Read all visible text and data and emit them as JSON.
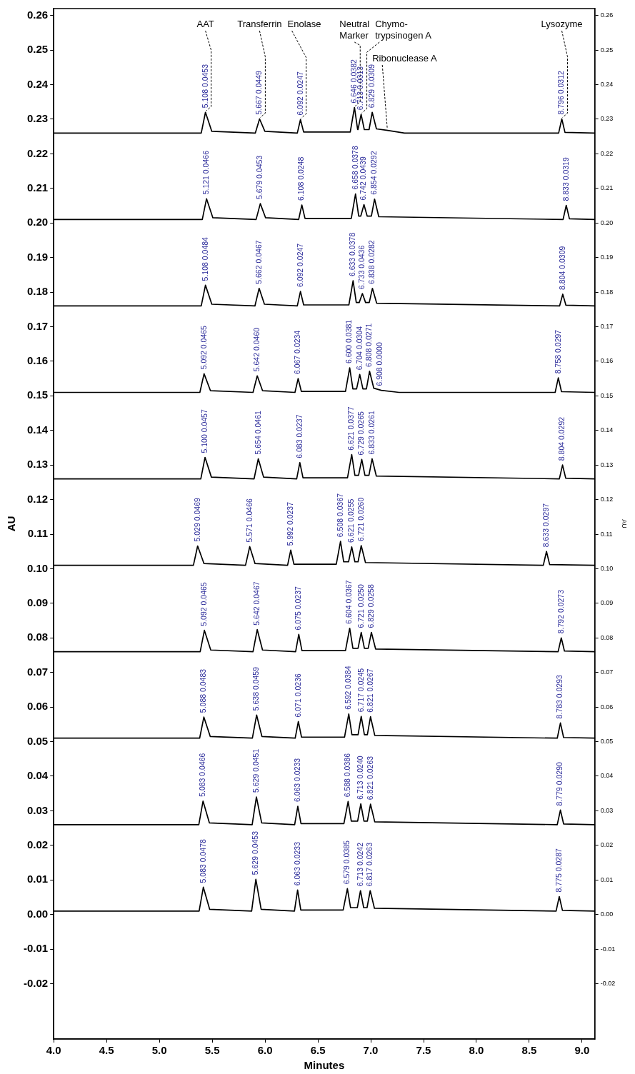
{
  "chart_data": {
    "type": "line",
    "xlabel": "Minutes",
    "ylabel": "AU",
    "y2label": "AU",
    "marker": "none",
    "line_style": "solid",
    "xlim": [
      4.0,
      9.12
    ],
    "xticks": [
      {
        "value": 4.0,
        "label": "4.0"
      },
      {
        "value": 4.5,
        "label": "4.5"
      },
      {
        "value": 5.0,
        "label": "5.0"
      },
      {
        "value": 5.5,
        "label": "5.5"
      },
      {
        "value": 6.0,
        "label": "6.0"
      },
      {
        "value": 6.5,
        "label": "6.5"
      },
      {
        "value": 7.0,
        "label": "7.0"
      },
      {
        "value": 7.5,
        "label": "7.5"
      },
      {
        "value": 8.0,
        "label": "8.0"
      },
      {
        "value": 8.5,
        "label": "8.5"
      },
      {
        "value": 9.0,
        "label": "9.0"
      }
    ],
    "ylim": [
      -0.036,
      0.262
    ],
    "yticks": [
      -0.02,
      -0.01,
      {
        "value": 0,
        "label": "0.00"
      },
      {
        "value": 0.01,
        "label": "0.01"
      },
      {
        "value": 0.02,
        "label": "0.02"
      },
      {
        "value": 0.03,
        "label": "0.03"
      },
      {
        "value": 0.04,
        "label": "0.04"
      },
      {
        "value": 0.05,
        "label": "0.05"
      },
      {
        "value": 0.06,
        "label": "0.06"
      },
      {
        "value": 0.07,
        "label": "0.07"
      },
      {
        "value": 0.08,
        "label": "0.08"
      },
      {
        "value": 0.09,
        "label": "0.09"
      },
      {
        "value": 0.1,
        "label": "0.10"
      },
      {
        "value": 0.11,
        "label": "0.11"
      },
      {
        "value": 0.12,
        "label": "0.12"
      },
      {
        "value": 0.13,
        "label": "0.13"
      },
      {
        "value": 0.14,
        "label": "0.14"
      },
      {
        "value": 0.15,
        "label": "0.15"
      },
      {
        "value": 0.16,
        "label": "0.16"
      },
      {
        "value": 0.17,
        "label": "0.17"
      },
      {
        "value": 0.18,
        "label": "0.18"
      },
      {
        "value": 0.19,
        "label": "0.19"
      },
      {
        "value": 0.2,
        "label": "0.20"
      },
      {
        "value": 0.21,
        "label": "0.21"
      },
      {
        "value": 0.22,
        "label": "0.22"
      },
      {
        "value": 0.23,
        "label": "0.23"
      },
      {
        "value": 0.24,
        "label": "0.24"
      },
      {
        "value": 0.25,
        "label": "0.25"
      },
      {
        "value": 0.26,
        "label": "0.26"
      }
    ],
    "y2lim": [
      -0.036,
      0.262
    ],
    "y2ticks": [
      -0.02,
      -0.01,
      {
        "value": 0,
        "label": "0.00"
      },
      {
        "value": 0.01,
        "label": "0.01"
      },
      {
        "value": 0.02,
        "label": "0.02"
      },
      {
        "value": 0.03,
        "label": "0.03"
      },
      {
        "value": 0.04,
        "label": "0.04"
      },
      {
        "value": 0.05,
        "label": "0.05"
      },
      {
        "value": 0.06,
        "label": "0.06"
      },
      {
        "value": 0.07,
        "label": "0.07"
      },
      {
        "value": 0.08,
        "label": "0.08"
      },
      {
        "value": 0.09,
        "label": "0.09"
      },
      {
        "value": 0.1,
        "label": "0.10"
      },
      {
        "value": 0.11,
        "label": "0.11"
      },
      {
        "value": 0.12,
        "label": "0.12"
      },
      {
        "value": 0.13,
        "label": "0.13"
      },
      {
        "value": 0.14,
        "label": "0.14"
      },
      {
        "value": 0.15,
        "label": "0.15"
      },
      {
        "value": 0.16,
        "label": "0.16"
      },
      {
        "value": 0.17,
        "label": "0.17"
      },
      {
        "value": 0.18,
        "label": "0.18"
      },
      {
        "value": 0.19,
        "label": "0.19"
      },
      {
        "value": 0.2,
        "label": "0.20"
      },
      {
        "value": 0.21,
        "label": "0.21"
      },
      {
        "value": 0.22,
        "label": "0.22"
      },
      {
        "value": 0.23,
        "label": "0.23"
      },
      {
        "value": 0.24,
        "label": "0.24"
      },
      {
        "value": 0.25,
        "label": "0.25"
      },
      {
        "value": 0.26,
        "label": "0.26"
      }
    ],
    "series": [
      {
        "color": "#000000",
        "x": [
          4.0,
          5.396,
          5.436,
          5.496,
          5.908,
          5.948,
          5.998,
          6.305,
          6.335,
          6.365,
          6.806,
          6.846,
          6.876,
          6.879,
          6.909,
          6.939,
          6.984,
          7.014,
          7.054,
          7.15,
          7.32,
          8.778,
          8.808,
          8.838,
          9.12
        ],
        "values": [
          0.226,
          0.226,
          0.232,
          0.2265,
          0.226,
          0.2301,
          0.2265,
          0.226,
          0.2299,
          0.2263,
          0.2263,
          0.2334,
          0.227,
          0.227,
          0.2314,
          0.227,
          0.227,
          0.232,
          0.2272,
          0.2268,
          0.226,
          0.226,
          0.2301,
          0.2262,
          0.226
        ]
      },
      {
        "color": "#000000",
        "x": [
          4.0,
          5.406,
          5.446,
          5.506,
          5.915,
          5.955,
          6.005,
          6.318,
          6.348,
          6.378,
          6.816,
          6.856,
          6.886,
          6.906,
          6.936,
          6.966,
          7.006,
          7.036,
          7.076,
          8.82,
          8.85,
          8.88,
          9.12
        ],
        "values": [
          0.201,
          0.201,
          0.207,
          0.2015,
          0.201,
          0.2056,
          0.2015,
          0.201,
          0.2052,
          0.2013,
          0.2013,
          0.2084,
          0.202,
          0.202,
          0.2053,
          0.202,
          0.202,
          0.2069,
          0.2018,
          0.201,
          0.2051,
          0.2012,
          0.201
        ]
      },
      {
        "color": "#000000",
        "x": [
          4.0,
          5.396,
          5.436,
          5.496,
          5.904,
          5.944,
          5.994,
          6.305,
          6.335,
          6.365,
          6.793,
          6.833,
          6.863,
          6.891,
          6.921,
          6.951,
          6.986,
          7.016,
          7.056,
          8.787,
          8.817,
          8.847,
          9.12
        ],
        "values": [
          0.176,
          0.176,
          0.182,
          0.1765,
          0.176,
          0.1811,
          0.1765,
          0.176,
          0.1802,
          0.1763,
          0.1763,
          0.1833,
          0.177,
          0.177,
          0.1796,
          0.177,
          0.177,
          0.1811,
          0.1768,
          0.176,
          0.1794,
          0.1762,
          0.176
        ]
      },
      {
        "color": "#000000",
        "x": [
          4.0,
          5.383,
          5.423,
          5.483,
          5.886,
          5.926,
          5.976,
          6.283,
          6.313,
          6.343,
          6.761,
          6.801,
          6.831,
          6.866,
          6.896,
          6.926,
          6.959,
          6.989,
          7.029,
          7.1,
          7.268,
          8.745,
          8.775,
          8.805,
          9.12
        ],
        "values": [
          0.151,
          0.151,
          0.1564,
          0.1515,
          0.151,
          0.1558,
          0.1515,
          0.151,
          0.155,
          0.1513,
          0.1513,
          0.1581,
          0.152,
          0.152,
          0.1562,
          0.152,
          0.152,
          0.1571,
          0.1522,
          0.1516,
          0.151,
          0.151,
          0.1552,
          0.1512,
          0.151
        ]
      },
      {
        "color": "#000000",
        "x": [
          4.0,
          5.392,
          5.432,
          5.492,
          5.896,
          5.936,
          5.986,
          6.299,
          6.329,
          6.359,
          6.78,
          6.82,
          6.85,
          6.885,
          6.915,
          6.945,
          6.983,
          7.013,
          7.053,
          8.785,
          8.815,
          8.845,
          9.12
        ],
        "values": [
          0.126,
          0.126,
          0.1322,
          0.1265,
          0.126,
          0.1318,
          0.1265,
          0.126,
          0.1307,
          0.1263,
          0.1263,
          0.133,
          0.127,
          0.127,
          0.1316,
          0.127,
          0.127,
          0.1318,
          0.1268,
          0.126,
          0.13,
          0.1262,
          0.126
        ]
      },
      {
        "color": "#000000",
        "x": [
          4.0,
          5.322,
          5.362,
          5.422,
          5.815,
          5.855,
          5.905,
          6.213,
          6.243,
          6.273,
          6.674,
          6.714,
          6.744,
          6.79,
          6.82,
          6.85,
          6.88,
          6.91,
          6.95,
          8.633,
          8.663,
          8.693,
          9.12
        ],
        "values": [
          0.101,
          0.101,
          0.1066,
          0.1015,
          0.101,
          0.1064,
          0.1015,
          0.101,
          0.1054,
          0.1013,
          0.1013,
          0.1079,
          0.102,
          0.102,
          0.1063,
          0.102,
          0.102,
          0.1067,
          0.1018,
          0.101,
          0.105,
          0.1012,
          0.101
        ]
      },
      {
        "color": "#000000",
        "x": [
          4.0,
          5.386,
          5.426,
          5.486,
          5.886,
          5.926,
          5.976,
          6.289,
          6.319,
          6.349,
          6.761,
          6.801,
          6.831,
          6.88,
          6.91,
          6.94,
          6.976,
          7.006,
          7.046,
          8.773,
          8.803,
          8.833,
          9.12
        ],
        "values": [
          0.076,
          0.076,
          0.0822,
          0.0765,
          0.076,
          0.0824,
          0.0765,
          0.076,
          0.081,
          0.0763,
          0.0763,
          0.0828,
          0.077,
          0.077,
          0.0816,
          0.077,
          0.077,
          0.0816,
          0.0768,
          0.076,
          0.08,
          0.0762,
          0.076
        ]
      },
      {
        "color": "#000000",
        "x": [
          4.0,
          5.381,
          5.421,
          5.481,
          5.88,
          5.92,
          5.97,
          6.285,
          6.315,
          6.345,
          6.752,
          6.792,
          6.822,
          6.88,
          6.91,
          6.94,
          6.968,
          6.998,
          7.038,
          8.765,
          8.795,
          8.825,
          9.12
        ],
        "values": [
          0.051,
          0.051,
          0.0571,
          0.0515,
          0.051,
          0.0577,
          0.0515,
          0.051,
          0.0558,
          0.0513,
          0.0513,
          0.058,
          0.052,
          0.052,
          0.0573,
          0.052,
          0.052,
          0.0572,
          0.0518,
          0.051,
          0.0554,
          0.0512,
          0.051
        ]
      },
      {
        "color": "#000000",
        "x": [
          4.0,
          5.373,
          5.413,
          5.473,
          5.878,
          5.918,
          5.968,
          6.28,
          6.31,
          6.34,
          6.746,
          6.786,
          6.816,
          6.876,
          6.906,
          6.936,
          6.968,
          6.998,
          7.038,
          8.765,
          8.795,
          8.825,
          9.12
        ],
        "values": [
          0.026,
          0.026,
          0.0328,
          0.0265,
          0.026,
          0.034,
          0.0265,
          0.026,
          0.0313,
          0.0263,
          0.0263,
          0.0327,
          0.027,
          0.027,
          0.032,
          0.027,
          0.027,
          0.0319,
          0.0268,
          0.026,
          0.0302,
          0.0262,
          0.026
        ]
      },
      {
        "color": "#000000",
        "x": [
          4.0,
          5.376,
          5.416,
          5.476,
          5.873,
          5.913,
          5.963,
          6.278,
          6.308,
          6.338,
          6.739,
          6.779,
          6.809,
          6.873,
          6.903,
          6.933,
          6.965,
          6.995,
          7.035,
          8.754,
          8.784,
          8.814,
          9.12
        ],
        "values": [
          0.001,
          0.001,
          0.0079,
          0.0015,
          0.001,
          0.0102,
          0.0015,
          0.001,
          0.0071,
          0.0013,
          0.0013,
          0.0075,
          0.002,
          0.002,
          0.0069,
          0.002,
          0.002,
          0.0069,
          0.0018,
          0.001,
          0.0052,
          0.0012,
          0.001
        ]
      }
    ],
    "annotations": [
      {
        "text": "AAT",
        "x": 5.436,
        "y": 0.232
      },
      {
        "text": "Transferrin",
        "x": 5.948,
        "y": 0.2301
      },
      {
        "text": "Enolase",
        "x": 6.335,
        "y": 0.2299
      },
      {
        "text": "Neutral\nMarker",
        "x": 6.846,
        "y": 0.2334
      },
      {
        "text": "Chymo-\ntrypsinogen A",
        "x": 6.909,
        "y": 0.2314
      },
      {
        "text": "Ribonuclease A",
        "x": 7.15,
        "y": 0.2268
      },
      {
        "text": "Lysozyme",
        "x": 8.808,
        "y": 0.2301
      },
      {
        "text": "5.108 0.0453",
        "x": 5.436,
        "y": 0.232
      },
      {
        "text": "5.667 0.0449",
        "x": 5.948,
        "y": 0.2301
      },
      {
        "text": "6.092 0.0247",
        "x": 6.335,
        "y": 0.2299
      },
      {
        "text": "6.646 0.0382",
        "x": 6.846,
        "y": 0.2334
      },
      {
        "text": "6.713 0.0313",
        "x": 6.909,
        "y": 0.2314
      },
      {
        "text": "6.829 0.0309",
        "x": 7.014,
        "y": 0.232
      },
      {
        "text": "8.796 0.0312",
        "x": 8.808,
        "y": 0.2301
      },
      {
        "text": "5.121 0.0466",
        "x": 5.446,
        "y": 0.207
      },
      {
        "text": "5.679 0.0453",
        "x": 5.955,
        "y": 0.2056
      },
      {
        "text": "6.108 0.0248",
        "x": 6.348,
        "y": 0.2052
      },
      {
        "text": "6.658 0.0378",
        "x": 6.856,
        "y": 0.2084
      },
      {
        "text": "6.742 0.0439",
        "x": 6.936,
        "y": 0.2053
      },
      {
        "text": "6.854 0.0292",
        "x": 7.036,
        "y": 0.2069
      },
      {
        "text": "8.833 0.0319",
        "x": 8.85,
        "y": 0.2051
      },
      {
        "text": "5.108 0.0484",
        "x": 5.436,
        "y": 0.182
      },
      {
        "text": "5.662 0.0467",
        "x": 5.944,
        "y": 0.1811
      },
      {
        "text": "6.092 0.0247",
        "x": 6.335,
        "y": 0.1802
      },
      {
        "text": "6.633 0.0378",
        "x": 6.833,
        "y": 0.1833
      },
      {
        "text": "6.733 0.0436",
        "x": 6.921,
        "y": 0.1796
      },
      {
        "text": "6.838 0.0282",
        "x": 7.016,
        "y": 0.1811
      },
      {
        "text": "8.804 0.0309",
        "x": 8.817,
        "y": 0.1794
      },
      {
        "text": "5.092 0.0465",
        "x": 5.423,
        "y": 0.1564
      },
      {
        "text": "5.642 0.0460",
        "x": 5.926,
        "y": 0.1558
      },
      {
        "text": "6.067 0.0234",
        "x": 6.313,
        "y": 0.155
      },
      {
        "text": "6.600 0.0381",
        "x": 6.801,
        "y": 0.1581
      },
      {
        "text": "6.704 0.0304",
        "x": 6.896,
        "y": 0.1562
      },
      {
        "text": "6.808 0.0271",
        "x": 6.989,
        "y": 0.1571
      },
      {
        "text": "6.908 0.0000",
        "x": 7.088,
        "y": 0.1516
      },
      {
        "text": "8.758 0.0297",
        "x": 8.775,
        "y": 0.1552
      },
      {
        "text": "5.100 0.0457",
        "x": 5.432,
        "y": 0.1322
      },
      {
        "text": "5.654 0.0461",
        "x": 5.936,
        "y": 0.1318
      },
      {
        "text": "6.083 0.0237",
        "x": 6.329,
        "y": 0.1307
      },
      {
        "text": "6.621 0.0377",
        "x": 6.82,
        "y": 0.133
      },
      {
        "text": "6.729 0.0265",
        "x": 6.915,
        "y": 0.1316
      },
      {
        "text": "6.833 0.0261",
        "x": 7.013,
        "y": 0.1318
      },
      {
        "text": "8.804 0.0292",
        "x": 8.815,
        "y": 0.13
      },
      {
        "text": "5.029 0.0469",
        "x": 5.362,
        "y": 0.1066
      },
      {
        "text": "5.571 0.0466",
        "x": 5.855,
        "y": 0.1064
      },
      {
        "text": "5.992 0.0237",
        "x": 6.243,
        "y": 0.1054
      },
      {
        "text": "6.508 0.0367",
        "x": 6.714,
        "y": 0.1079
      },
      {
        "text": "6.621 0.0255",
        "x": 6.82,
        "y": 0.1063
      },
      {
        "text": "6.721 0.0260",
        "x": 6.91,
        "y": 0.1067
      },
      {
        "text": "8.633 0.0297",
        "x": 8.663,
        "y": 0.105
      },
      {
        "text": "5.092 0.0465",
        "x": 5.426,
        "y": 0.0822
      },
      {
        "text": "5.642 0.0467",
        "x": 5.926,
        "y": 0.0824
      },
      {
        "text": "6.075 0.0237",
        "x": 6.319,
        "y": 0.081
      },
      {
        "text": "6.604 0.0367",
        "x": 6.801,
        "y": 0.0828
      },
      {
        "text": "6.721 0.0250",
        "x": 6.91,
        "y": 0.0816
      },
      {
        "text": "6.829 0.0258",
        "x": 7.006,
        "y": 0.0816
      },
      {
        "text": "8.792 0.0273",
        "x": 8.803,
        "y": 0.08
      },
      {
        "text": "5.088 0.0483",
        "x": 5.421,
        "y": 0.0571
      },
      {
        "text": "5.638 0.0459",
        "x": 5.92,
        "y": 0.0577
      },
      {
        "text": "6.071 0.0236",
        "x": 6.315,
        "y": 0.0558
      },
      {
        "text": "6.592 0.0384",
        "x": 6.792,
        "y": 0.058
      },
      {
        "text": "6.717 0.0245",
        "x": 6.91,
        "y": 0.0573
      },
      {
        "text": "6.821 0.0267",
        "x": 6.998,
        "y": 0.0572
      },
      {
        "text": "8.783 0.0293",
        "x": 8.795,
        "y": 0.0554
      },
      {
        "text": "5.083 0.0466",
        "x": 5.413,
        "y": 0.0328
      },
      {
        "text": "5.629 0.0451",
        "x": 5.918,
        "y": 0.034
      },
      {
        "text": "6.063 0.0233",
        "x": 6.31,
        "y": 0.0313
      },
      {
        "text": "6.588 0.0386",
        "x": 6.786,
        "y": 0.0327
      },
      {
        "text": "6.713 0.0240",
        "x": 6.906,
        "y": 0.032
      },
      {
        "text": "6.821 0.0263",
        "x": 6.998,
        "y": 0.0319
      },
      {
        "text": "8.779 0.0290",
        "x": 8.795,
        "y": 0.0302
      },
      {
        "text": "5.083 0.0478",
        "x": 5.416,
        "y": 0.0079
      },
      {
        "text": "5.629 0.0453",
        "x": 5.913,
        "y": 0.0102
      },
      {
        "text": "6.063 0.0233",
        "x": 6.308,
        "y": 0.0071
      },
      {
        "text": "6.579 0.0385",
        "x": 6.779,
        "y": 0.0075
      },
      {
        "text": "6.713 0.0242",
        "x": 6.903,
        "y": 0.0069
      },
      {
        "text": "6.817 0.0263",
        "x": 6.995,
        "y": 0.0069
      },
      {
        "text": "8.775 0.0287",
        "x": 8.784,
        "y": 0.0052
      }
    ]
  }
}
